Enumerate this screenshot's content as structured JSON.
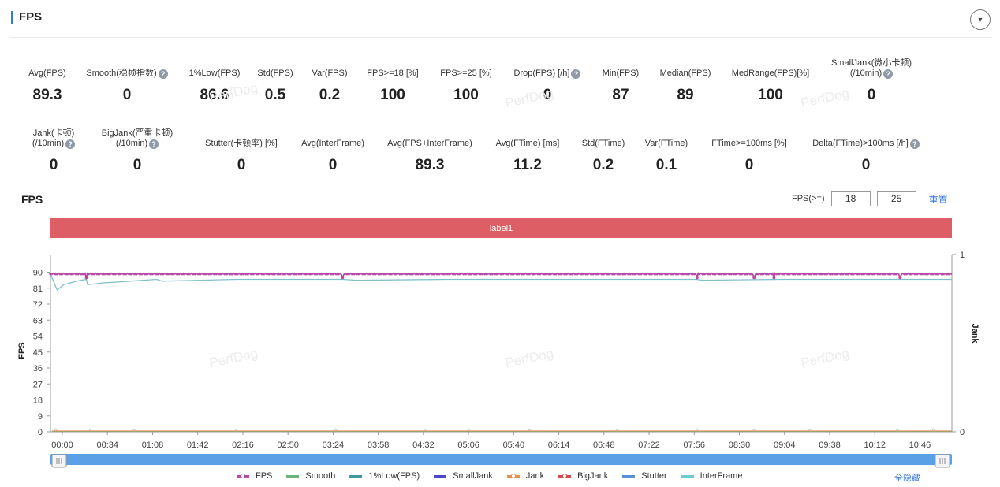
{
  "section": {
    "title": "FPS",
    "collapse_icon": "▾"
  },
  "metrics_row1": [
    {
      "label": "Avg(FPS)",
      "value": "89.3",
      "help": false
    },
    {
      "label": "Smooth(稳帧指数)",
      "value": "0",
      "help": true
    },
    {
      "label": "1%Low(FPS)",
      "value": "86.6",
      "help": false
    },
    {
      "label": "Std(FPS)",
      "value": "0.5",
      "help": false
    },
    {
      "label": "Var(FPS)",
      "value": "0.2",
      "help": false
    },
    {
      "label": "FPS>=18 [%]",
      "value": "100",
      "help": false
    },
    {
      "label": "FPS>=25 [%]",
      "value": "100",
      "help": false
    },
    {
      "label": "Drop(FPS) [/h]",
      "value": "0",
      "help": true
    },
    {
      "label": "Min(FPS)",
      "value": "87",
      "help": false
    },
    {
      "label": "Median(FPS)",
      "value": "89",
      "help": false
    },
    {
      "label": "MedRange(FPS)[%]",
      "value": "100",
      "help": false
    },
    {
      "label": "SmallJank(微小卡顿)",
      "label2": "(/10min)",
      "value": "0",
      "help": true
    }
  ],
  "metrics_row2": [
    {
      "label": "Jank(卡顿)",
      "label2": "(/10min)",
      "value": "0",
      "help": true
    },
    {
      "label": "BigJank(严重卡顿)",
      "label2": "(/10min)",
      "value": "0",
      "help": true
    },
    {
      "label": "Stutter(卡顿率) [%]",
      "value": "0",
      "help": false
    },
    {
      "label": "Avg(InterFrame)",
      "value": "0",
      "help": false
    },
    {
      "label": "Avg(FPS+InterFrame)",
      "value": "89.3",
      "help": false
    },
    {
      "label": "Avg(FTime) [ms]",
      "value": "11.2",
      "help": false
    },
    {
      "label": "Std(FTime)",
      "value": "0.2",
      "help": false
    },
    {
      "label": "Var(FTime)",
      "value": "0.1",
      "help": false
    },
    {
      "label": "FTime>=100ms [%]",
      "value": "0",
      "help": false
    },
    {
      "label": "Delta(FTime)>100ms [/h]",
      "value": "0",
      "help": true
    }
  ],
  "help_icon": "?",
  "watermark_text": "PerfDog",
  "chart_header": {
    "title": "FPS",
    "threshold_label": "FPS(>=)",
    "threshold1": "18",
    "threshold2": "25",
    "reset_label": "重置",
    "label_bar": "label1"
  },
  "legend": [
    {
      "name": "FPS",
      "color": "#b74aa6",
      "marker": true
    },
    {
      "name": "Smooth",
      "color": "#6fb37c",
      "marker": false
    },
    {
      "name": "1%Low(FPS)",
      "color": "#3f9aa0",
      "marker": false
    },
    {
      "name": "SmallJank",
      "color": "#4949c9",
      "marker": false
    },
    {
      "name": "Jank",
      "color": "#ee8a4a",
      "marker": true
    },
    {
      "name": "BigJank",
      "color": "#d24a4a",
      "marker": true
    },
    {
      "name": "Stutter",
      "color": "#5b8ed8",
      "marker": false
    },
    {
      "name": "InterFrame",
      "color": "#6bcad4",
      "marker": false
    }
  ],
  "hide_all_label": "全隐藏",
  "chart_data": {
    "type": "line",
    "x_ticks": [
      "00:00",
      "00:34",
      "01:08",
      "01:42",
      "02:16",
      "02:50",
      "03:24",
      "03:58",
      "04:32",
      "05:06",
      "05:40",
      "06:14",
      "06:48",
      "07:22",
      "07:56",
      "08:30",
      "09:04",
      "09:38",
      "10:12",
      "10:46"
    ],
    "xlim": [
      0,
      679
    ],
    "ylabel": "FPS",
    "y_ticks": [
      0,
      9,
      18,
      27,
      36,
      45,
      54,
      63,
      72,
      81,
      90
    ],
    "ylim": [
      0,
      100
    ],
    "y2label": "Jank",
    "y2_ticks": [
      0,
      1
    ],
    "y2lim": [
      0,
      1
    ],
    "series": [
      {
        "name": "FPS",
        "axis": "left",
        "color": "#b74aa6",
        "base_value": 89,
        "dips": [
          {
            "t": 27,
            "value": 87
          },
          {
            "t": 220,
            "value": 87
          },
          {
            "t": 487,
            "value": 87
          },
          {
            "t": 530,
            "value": 87
          },
          {
            "t": 545,
            "value": 87
          },
          {
            "t": 640,
            "value": 87
          }
        ]
      },
      {
        "name": "1%Low(FPS)",
        "axis": "left",
        "color": "#7fc1c8",
        "points": [
          [
            0,
            89
          ],
          [
            5,
            80
          ],
          [
            10,
            83
          ],
          [
            20,
            85
          ],
          [
            27,
            86
          ],
          [
            28,
            83
          ],
          [
            40,
            84
          ],
          [
            60,
            85
          ],
          [
            80,
            86
          ],
          [
            84,
            85
          ],
          [
            140,
            86
          ],
          [
            200,
            86
          ],
          [
            220,
            86
          ],
          [
            230,
            85.5
          ],
          [
            300,
            86
          ],
          [
            400,
            86
          ],
          [
            487,
            86
          ],
          [
            490,
            85.5
          ],
          [
            550,
            86
          ],
          [
            600,
            86
          ],
          [
            679,
            86
          ]
        ]
      },
      {
        "name": "Jank",
        "axis": "right",
        "color": "#ee8a4a",
        "values": 0
      },
      {
        "name": "BigJank",
        "axis": "right",
        "color": "#d24a4a",
        "values": 0
      },
      {
        "name": "Smooth",
        "axis": "left",
        "color": "#6fb37c",
        "values": 0
      }
    ]
  }
}
